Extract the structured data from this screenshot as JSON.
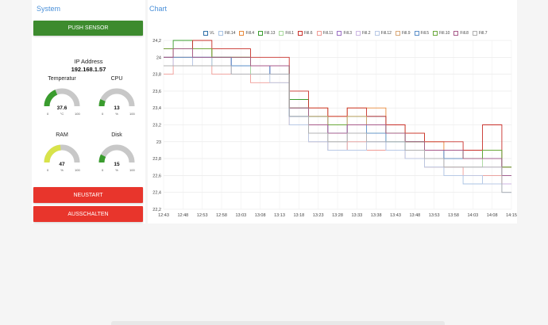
{
  "system": {
    "title": "System",
    "push_label": "PUSH SENSOR",
    "ip_label": "IP Address",
    "ip_value": "192.168.1.57",
    "neustart_label": "NEUSTART",
    "ausschalten_label": "AUSSCHALTEN",
    "gauges": [
      {
        "label": "Temperatur",
        "value": "37.6",
        "fraction": 0.376,
        "unit": "°C",
        "min": "0",
        "max": "100",
        "color": "#3a9c2e"
      },
      {
        "label": "CPU",
        "value": "13",
        "fraction": 0.13,
        "unit": "%",
        "min": "0",
        "max": "100",
        "color": "#3a9c2e"
      },
      {
        "label": "RAM",
        "value": "47",
        "fraction": 0.47,
        "unit": "%",
        "min": "0",
        "max": "100",
        "color": "#d8e34a"
      },
      {
        "label": "Disk",
        "value": "15",
        "fraction": 0.15,
        "unit": "%",
        "min": "0",
        "max": "100",
        "color": "#3a9c2e"
      }
    ]
  },
  "chart": {
    "title": "Chart"
  },
  "chart_data": {
    "type": "line",
    "ylim": [
      22.2,
      24.2
    ],
    "yticks": [
      "24,2",
      "24",
      "23,8",
      "23,6",
      "23,4",
      "23,2",
      "23",
      "22,8",
      "22,6",
      "22,4",
      "22,2"
    ],
    "ytick_values": [
      24.2,
      24.0,
      23.8,
      23.6,
      23.4,
      23.2,
      23.0,
      22.8,
      22.6,
      22.4,
      22.2
    ],
    "xticks": [
      "12:43",
      "12:48",
      "12:53",
      "12:58",
      "13:03",
      "13:08",
      "13:13",
      "13:18",
      "13:23",
      "13:28",
      "13:33",
      "13:38",
      "13:43",
      "13:48",
      "13:53",
      "13:58",
      "14:03",
      "14:08",
      "14:15"
    ],
    "grid": true,
    "legend_position": "top",
    "series": [
      {
        "name": "VL",
        "color": "#2e6fa8",
        "values": [
          24.0,
          24.1,
          24.0,
          24.0,
          23.9,
          23.9,
          23.8,
          23.4,
          23.3,
          23.2,
          23.2,
          23.3,
          23.1,
          23.0,
          22.9,
          22.8,
          22.8,
          22.9,
          22.6
        ]
      },
      {
        "name": "Fill.14",
        "color": "#a9c3e3",
        "values": [
          23.9,
          24.0,
          24.0,
          23.9,
          23.9,
          23.8,
          23.8,
          23.3,
          23.0,
          22.9,
          23.0,
          23.0,
          22.9,
          22.8,
          22.7,
          22.6,
          22.5,
          22.6,
          22.4
        ]
      },
      {
        "name": "Fill.4",
        "color": "#e8893a",
        "values": [
          24.0,
          24.1,
          24.1,
          24.0,
          24.0,
          23.9,
          23.9,
          23.5,
          23.4,
          23.3,
          23.4,
          23.4,
          23.2,
          23.1,
          23.0,
          22.9,
          22.9,
          22.9,
          22.5
        ]
      },
      {
        "name": "Fill.13",
        "color": "#3a9c2e",
        "values": [
          24.1,
          24.2,
          24.1,
          24.0,
          24.0,
          23.9,
          23.9,
          23.5,
          23.3,
          23.2,
          23.3,
          23.2,
          23.1,
          23.0,
          22.9,
          22.9,
          22.8,
          22.9,
          22.7
        ]
      },
      {
        "name": "Fill.1",
        "color": "#a8d89c",
        "values": [
          23.9,
          24.0,
          24.0,
          23.9,
          23.9,
          23.8,
          23.8,
          23.3,
          23.1,
          23.0,
          23.1,
          23.1,
          23.0,
          22.9,
          22.8,
          22.7,
          22.7,
          22.8,
          22.6
        ]
      },
      {
        "name": "Fill.6",
        "color": "#c8302a",
        "values": [
          24.1,
          24.1,
          24.2,
          24.1,
          24.1,
          24.0,
          24.0,
          23.6,
          23.4,
          23.3,
          23.4,
          23.3,
          23.2,
          23.1,
          23.0,
          23.0,
          22.9,
          23.2,
          22.7
        ]
      },
      {
        "name": "Fill.11",
        "color": "#f09c96",
        "values": [
          23.8,
          23.9,
          23.9,
          23.8,
          23.8,
          23.7,
          23.7,
          23.2,
          23.0,
          22.9,
          23.0,
          22.9,
          22.9,
          22.8,
          22.7,
          22.7,
          22.6,
          22.6,
          22.5
        ]
      },
      {
        "name": "Fill.3",
        "color": "#9b6fc4",
        "values": [
          24.0,
          24.0,
          24.0,
          24.0,
          23.9,
          23.9,
          23.8,
          23.4,
          23.2,
          23.1,
          23.2,
          23.2,
          23.1,
          23.0,
          22.9,
          22.8,
          22.8,
          22.8,
          22.6
        ]
      },
      {
        "name": "Fill.2",
        "color": "#cdb6e3",
        "values": [
          23.9,
          24.0,
          23.9,
          23.9,
          23.8,
          23.8,
          23.8,
          23.3,
          23.1,
          23.0,
          23.1,
          23.0,
          22.9,
          22.9,
          22.8,
          22.7,
          22.7,
          22.7,
          22.5
        ]
      },
      {
        "name": "Fill.12",
        "color": "#b8c9e6",
        "values": [
          23.9,
          23.9,
          24.0,
          23.9,
          23.8,
          23.8,
          23.7,
          23.2,
          23.0,
          22.9,
          22.9,
          23.0,
          22.9,
          22.8,
          22.7,
          22.6,
          22.6,
          22.5,
          22.4
        ]
      },
      {
        "name": "Fill.9",
        "color": "#d9a877",
        "values": [
          24.0,
          24.0,
          24.1,
          24.0,
          24.0,
          23.9,
          23.9,
          23.4,
          23.3,
          23.2,
          23.3,
          23.2,
          23.1,
          23.0,
          22.9,
          22.8,
          22.8,
          22.8,
          22.6
        ]
      },
      {
        "name": "Fill.5",
        "color": "#5b8fc9",
        "values": [
          24.0,
          24.0,
          24.0,
          24.0,
          23.9,
          23.9,
          23.8,
          23.3,
          23.2,
          23.1,
          23.2,
          23.1,
          23.0,
          22.9,
          22.9,
          22.8,
          22.8,
          22.8,
          22.6
        ]
      },
      {
        "name": "Fill.10",
        "color": "#6aa83a",
        "values": [
          24.1,
          24.1,
          24.1,
          24.0,
          24.0,
          23.9,
          23.9,
          23.4,
          23.2,
          23.2,
          23.2,
          23.2,
          23.1,
          23.0,
          22.9,
          22.9,
          22.8,
          22.9,
          22.7
        ]
      },
      {
        "name": "Fill.8",
        "color": "#a85a8a",
        "values": [
          24.0,
          24.1,
          24.0,
          24.0,
          24.0,
          23.9,
          23.9,
          23.4,
          23.2,
          23.1,
          23.2,
          23.2,
          23.1,
          23.0,
          22.9,
          22.9,
          22.8,
          22.8,
          22.6
        ]
      },
      {
        "name": "Fill.7",
        "color": "#b0b0b0",
        "values": [
          23.9,
          23.9,
          23.9,
          23.9,
          23.8,
          23.8,
          23.8,
          23.3,
          23.1,
          23.0,
          23.1,
          23.0,
          23.0,
          22.9,
          22.8,
          22.7,
          22.7,
          22.7,
          22.4
        ]
      }
    ]
  }
}
